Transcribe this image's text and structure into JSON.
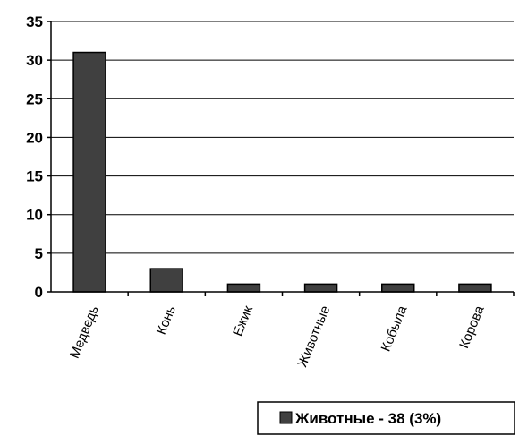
{
  "chart_data": {
    "type": "bar",
    "categories": [
      "Медведь",
      "Конь",
      "Ежик",
      "Животные",
      "Кобыла",
      "Корова"
    ],
    "series": [
      {
        "name": "Животные - 38 (3%)",
        "values": [
          31,
          3,
          1,
          1,
          1,
          1
        ]
      }
    ],
    "ylim": [
      0,
      35
    ],
    "yticks": [
      0,
      5,
      10,
      15,
      20,
      25,
      30,
      35
    ],
    "grid": true,
    "legend_position": "bottom-right",
    "colors": {
      "bar": "#404040",
      "bar_stroke": "#000000",
      "grid": "#000000"
    }
  }
}
